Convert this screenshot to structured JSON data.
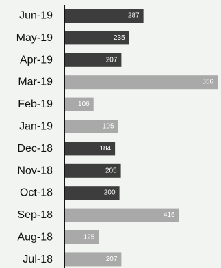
{
  "chart_data": {
    "type": "bar",
    "orientation": "horizontal",
    "title": "",
    "xlabel": "",
    "ylabel": "",
    "xlim": [
      0,
      556
    ],
    "grid": false,
    "legend": "none",
    "categories": [
      "Jun-19",
      "May-19",
      "Apr-19",
      "Mar-19",
      "Feb-19",
      "Jan-19",
      "Dec-18",
      "Nov-18",
      "Oct-18",
      "Sep-18",
      "Aug-18",
      "Jul-18"
    ],
    "values": [
      287,
      235,
      207,
      556,
      106,
      195,
      184,
      205,
      200,
      416,
      125,
      207
    ],
    "value_labels": [
      "287",
      "235",
      "207",
      "556",
      "106",
      "195",
      "184",
      "205",
      "200",
      "416",
      "125",
      "207"
    ],
    "bar_colors": [
      "#3d3d3d",
      "#3d3d3d",
      "#3d3d3d",
      "#a9a9a9",
      "#a9a9a9",
      "#a9a9a9",
      "#3d3d3d",
      "#3d3d3d",
      "#3d3d3d",
      "#a9a9a9",
      "#a9a9a9",
      "#a9a9a9"
    ]
  },
  "colors": {
    "background": "#f2f4f2",
    "axis": "#111111",
    "label_text": "#111111",
    "value_text": "#ffffff"
  }
}
